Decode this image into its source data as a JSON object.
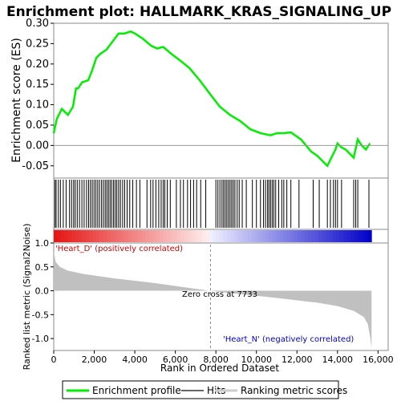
{
  "chart_data": {
    "type": "line",
    "title": "Enrichment plot: HALLMARK_KRAS_SIGNALING_UP",
    "colors": {
      "enrichment_line": "#00ee00",
      "hit_tick": "#000000",
      "ranking_fill": "#c0c0c0",
      "zero_line": "#999999",
      "heat_positive": "#ee0000",
      "heat_negative": "#0000cc",
      "legend_hits": "#666666",
      "legend_ranking": "#cccccc"
    },
    "panels": {
      "enrichment": {
        "ylabel": "Enrichment score (ES)",
        "ylim": [
          -0.08,
          0.3
        ],
        "yticks": [
          -0.05,
          0.0,
          0.05,
          0.1,
          0.15,
          0.2,
          0.25,
          0.3
        ],
        "ytick_labels": [
          "-0.05",
          "0.00",
          "0.05",
          "0.10",
          "0.15",
          "0.20",
          "0.25",
          "0.30"
        ],
        "series": [
          {
            "name": "Enrichment profile",
            "x": [
              0,
              150,
              400,
              700,
              950,
              1100,
              1200,
              1400,
              1700,
              1900,
              2100,
              2300,
              2600,
              2900,
              3200,
              3500,
              3800,
              4000,
              4400,
              4800,
              5100,
              5400,
              5800,
              6200,
              6700,
              7200,
              7733,
              8200,
              8700,
              9200,
              9700,
              10200,
              10700,
              11000,
              11300,
              11700,
              12200,
              12700,
              13000,
              13300,
              13500,
              13700,
              13900,
              14000,
              14200,
              14400,
              14600,
              14800,
              15000,
              15200,
              15400,
              15600
            ],
            "y": [
              0.03,
              0.065,
              0.09,
              0.075,
              0.095,
              0.14,
              0.14,
              0.155,
              0.16,
              0.185,
              0.215,
              0.225,
              0.235,
              0.255,
              0.275,
              0.275,
              0.28,
              0.275,
              0.262,
              0.245,
              0.238,
              0.242,
              0.225,
              0.21,
              0.19,
              0.16,
              0.125,
              0.095,
              0.075,
              0.06,
              0.04,
              0.03,
              0.025,
              0.03,
              0.03,
              0.032,
              0.015,
              -0.015,
              -0.025,
              -0.04,
              -0.05,
              -0.03,
              -0.01,
              0.005,
              -0.005,
              -0.01,
              -0.02,
              -0.03,
              0.015,
              0.0,
              -0.01,
              0.005
            ]
          }
        ]
      },
      "hits": {
        "positions": [
          60,
          120,
          230,
          330,
          470,
          610,
          780,
          880,
          980,
          1060,
          1160,
          1270,
          1390,
          1500,
          1620,
          1720,
          1810,
          1900,
          1990,
          2080,
          2170,
          2260,
          2360,
          2450,
          2540,
          2620,
          2700,
          2780,
          2860,
          2950,
          3030,
          3110,
          3200,
          3290,
          3400,
          3500,
          3620,
          3750,
          3900,
          4080,
          4250,
          4600,
          4780,
          4900,
          5040,
          5180,
          5300,
          5400,
          5480,
          5600,
          5750,
          6050,
          6250,
          6400,
          6600,
          6750,
          6900,
          7050,
          7250,
          7500,
          8000,
          8100,
          8200,
          8300,
          8380,
          8460,
          8540,
          8620,
          8700,
          8780,
          8860,
          8940,
          9050,
          9150,
          9300,
          9500,
          9800,
          10000,
          10200,
          10350,
          10450,
          10550,
          10620,
          10700,
          10780,
          10860,
          10950,
          11100,
          11250,
          11350,
          11500,
          11700,
          12100,
          12800,
          13100,
          13500,
          13650,
          13800,
          13900,
          14000,
          14200,
          14800,
          14900,
          15000,
          15550
        ]
      },
      "ranking": {
        "ylabel": "Ranked list metric (Signal2Noise)",
        "ylim": [
          -1.25,
          1.0
        ],
        "yticks": [
          -1.0,
          -0.5,
          0.0,
          0.5,
          1.0
        ],
        "ytick_labels": [
          "-1.0",
          "-0.5",
          "0.0",
          "0.5",
          "1.0"
        ],
        "x": [
          0,
          100,
          300,
          700,
          1500,
          3000,
          5000,
          6500,
          7733,
          9000,
          11000,
          13000,
          14000,
          14800,
          15300,
          15500,
          15620,
          15680
        ],
        "y": [
          0.82,
          0.6,
          0.5,
          0.42,
          0.35,
          0.26,
          0.16,
          0.07,
          0.0,
          -0.06,
          -0.15,
          -0.25,
          -0.32,
          -0.42,
          -0.55,
          -0.7,
          -1.0,
          -1.2
        ],
        "annotations": {
          "positive_label": "'Heart_D' (positively correlated)",
          "negative_label": "'Heart_N' (negatively correlated)",
          "zero_cross": "Zero cross at 7733",
          "zero_cross_x": 7733
        }
      }
    },
    "x_axis": {
      "xlabel": "Rank in Ordered Dataset",
      "xlim": [
        0,
        16500
      ],
      "max_rank": 15680,
      "xticks": [
        0,
        2000,
        4000,
        6000,
        8000,
        10000,
        12000,
        14000,
        16000
      ],
      "xtick_labels": [
        "0",
        "2,000",
        "4,000",
        "6,000",
        "8,000",
        "10,000",
        "12,000",
        "14,000",
        "16,000"
      ]
    },
    "legend": {
      "placement": "bottom",
      "entries": [
        "Enrichment profile",
        "Hits",
        "Ranking metric scores"
      ]
    }
  }
}
